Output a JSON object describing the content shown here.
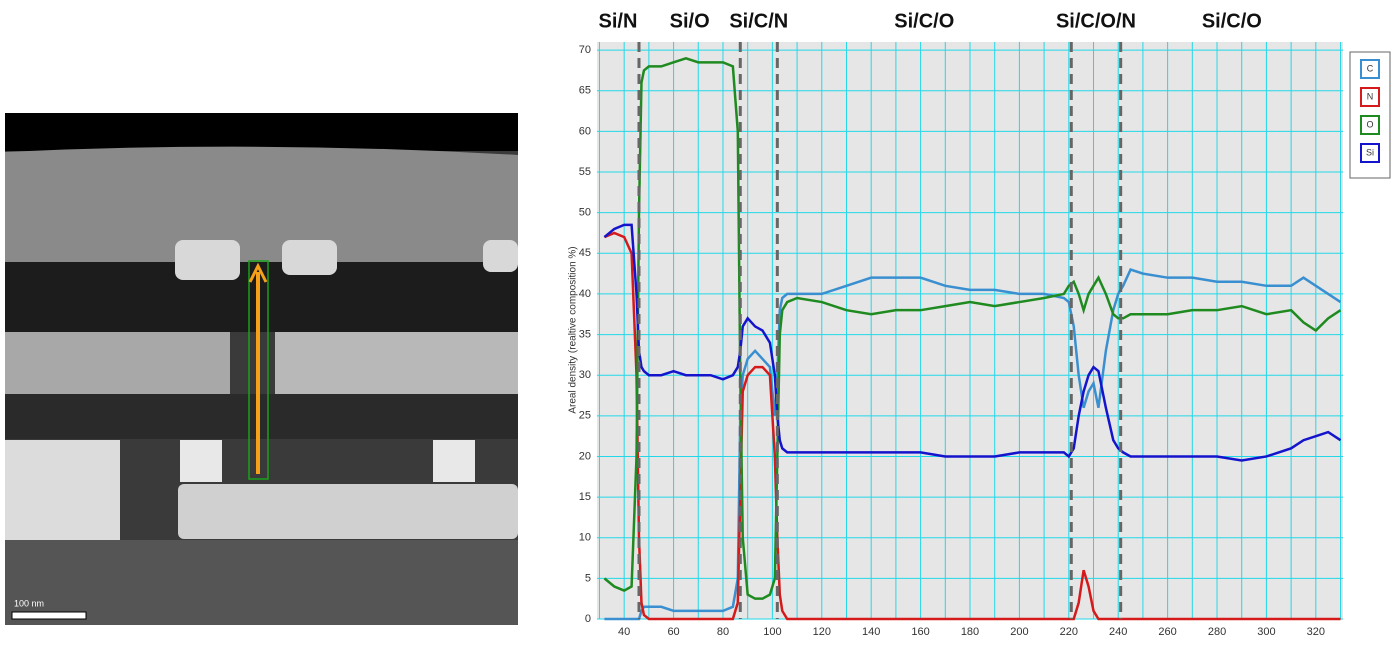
{
  "image_scale_label": "100 nm",
  "chart_data": {
    "type": "line",
    "ylabel": "Areal density (realtive composition %)",
    "x": [
      32,
      36,
      40,
      43,
      45,
      46,
      47,
      48,
      50,
      55,
      60,
      65,
      70,
      75,
      80,
      84,
      86,
      87,
      88,
      90,
      93,
      96,
      99,
      101,
      102,
      103,
      104,
      106,
      110,
      120,
      130,
      140,
      150,
      160,
      170,
      180,
      190,
      200,
      210,
      218,
      220,
      222,
      224,
      226,
      228,
      230,
      232,
      235,
      238,
      240,
      242,
      245,
      250,
      260,
      270,
      280,
      290,
      300,
      310,
      315,
      320,
      325,
      330
    ],
    "series": [
      {
        "name": "C",
        "color": "#3a8fd0",
        "values": [
          0,
          0,
          0,
          0,
          0,
          0,
          1,
          1.5,
          1.5,
          1.5,
          1,
          1,
          1,
          1,
          1,
          1.5,
          5,
          25,
          30,
          32,
          33,
          32,
          31,
          25,
          30,
          38,
          39.5,
          40,
          40,
          40,
          41,
          42,
          42,
          42,
          41,
          40.5,
          40.5,
          40,
          40,
          39.5,
          39,
          36,
          30,
          26,
          28,
          29,
          26,
          33,
          38,
          40,
          41,
          43,
          42.5,
          42,
          42,
          41.5,
          41.5,
          41,
          41,
          42,
          41,
          40,
          39
        ]
      },
      {
        "name": "N",
        "color": "#d41a1a",
        "values": [
          47,
          47.5,
          47,
          45,
          30,
          10,
          2,
          0.5,
          0,
          0,
          0,
          0,
          0,
          0,
          0,
          0,
          2,
          15,
          28,
          30,
          31,
          31,
          30,
          20,
          10,
          3,
          1,
          0,
          0,
          0,
          0,
          0,
          0,
          0,
          0,
          0,
          0,
          0,
          0,
          0,
          0,
          0,
          2,
          6,
          4,
          1,
          0,
          0,
          0,
          0,
          0,
          0,
          0,
          0,
          0,
          0,
          0,
          0,
          0,
          0,
          0,
          0,
          0
        ]
      },
      {
        "name": "O",
        "color": "#1f8a1f",
        "values": [
          5,
          4,
          3.5,
          4,
          20,
          50,
          66,
          67.5,
          68,
          68,
          68.5,
          69,
          68.5,
          68.5,
          68.5,
          68,
          60,
          30,
          10,
          3,
          2.5,
          2.5,
          3,
          5,
          20,
          35,
          38,
          39,
          39.5,
          39,
          38,
          37.5,
          38,
          38,
          38.5,
          39,
          38.5,
          39,
          39.5,
          40,
          41,
          41.5,
          40,
          38,
          40,
          41,
          42,
          40,
          37.5,
          37,
          37,
          37.5,
          37.5,
          37.5,
          38,
          38,
          38.5,
          37.5,
          38,
          36.5,
          35.5,
          37,
          38
        ]
      },
      {
        "name": "Si",
        "color": "#1414cc",
        "values": [
          47,
          48,
          48.5,
          48.5,
          40,
          33,
          31,
          30.5,
          30,
          30,
          30.5,
          30,
          30,
          30,
          29.5,
          30,
          31,
          33,
          36,
          37,
          36,
          35.5,
          34,
          30,
          25,
          22,
          21,
          20.5,
          20.5,
          20.5,
          20.5,
          20.5,
          20.5,
          20.5,
          20,
          20,
          20,
          20.5,
          20.5,
          20.5,
          20,
          21,
          25,
          28,
          30,
          31,
          30.5,
          26,
          22,
          21,
          20.5,
          20,
          20,
          20,
          20,
          20,
          19.5,
          20,
          21,
          22,
          22.5,
          23,
          22
        ]
      }
    ],
    "xlim": [
      29,
      331
    ],
    "ylim": [
      0,
      71
    ],
    "xticks": [
      40,
      60,
      80,
      100,
      120,
      140,
      160,
      180,
      200,
      220,
      240,
      260,
      280,
      300,
      320
    ],
    "minor_xticks": [
      30,
      50,
      70,
      90,
      110,
      130,
      150,
      170,
      190,
      210,
      230,
      250,
      270,
      290,
      310,
      330
    ],
    "yticks": [
      0,
      5,
      10,
      15,
      20,
      25,
      30,
      35,
      40,
      45,
      50,
      55,
      60,
      65,
      70
    ],
    "grid": true,
    "grid_color": "#22d8e8",
    "legend": "right",
    "boundaries": [
      46,
      87,
      102,
      221,
      241
    ],
    "regions": [
      "Si/N",
      "Si/O",
      "Si/C/N",
      "Si/C/O",
      "Si/C/O/N",
      "Si/C/O"
    ]
  }
}
